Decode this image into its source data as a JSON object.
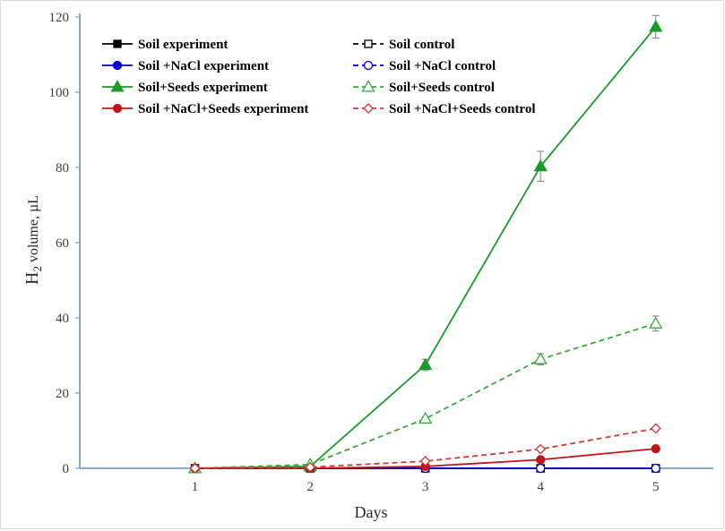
{
  "chart_data": {
    "type": "line",
    "xlabel": "Days",
    "ylabel": {
      "main": "H",
      "subscript": "2",
      "rest": " volume, µL"
    },
    "x": [
      1,
      2,
      3,
      4,
      5
    ],
    "xlim": [
      0,
      5.5
    ],
    "ylim": [
      0,
      120
    ],
    "yticks": [
      0,
      20,
      40,
      60,
      80,
      100,
      120
    ],
    "xticks": [
      1,
      2,
      3,
      4,
      5
    ],
    "grid": false,
    "legend_position": "top-left",
    "series": [
      {
        "name": "Soil experiment",
        "values": [
          0,
          0,
          0,
          0,
          0
        ],
        "color": "#000000",
        "marker": "square",
        "filled": true,
        "dashed": false
      },
      {
        "name": "Soil control",
        "values": [
          0,
          0,
          0,
          0,
          0
        ],
        "color": "#000000",
        "marker": "square",
        "filled": false,
        "dashed": true
      },
      {
        "name": "Soil +NaCl experiment",
        "values": [
          0,
          0,
          0,
          0,
          0
        ],
        "color": "#0000cc",
        "marker": "circle",
        "filled": true,
        "dashed": false
      },
      {
        "name": "Soil +NaCl control",
        "values": [
          0,
          0,
          0,
          0,
          0
        ],
        "color": "#0000cc",
        "marker": "circle",
        "filled": false,
        "dashed": true
      },
      {
        "name": "Soil+Seeds experiment",
        "values": [
          0,
          0.5,
          27.5,
          80.3,
          117.4
        ],
        "errors": [
          0,
          0,
          1.5,
          4.0,
          3.0
        ],
        "color": "#1a9b2a",
        "marker": "triangle",
        "filled": true,
        "dashed": false
      },
      {
        "name": "Soil+Seeds control",
        "values": [
          0,
          1.0,
          13.2,
          29.0,
          38.5
        ],
        "errors": [
          0,
          0,
          0.5,
          1.5,
          2.0
        ],
        "color": "#3aa83a",
        "marker": "triangle",
        "filled": false,
        "dashed": true
      },
      {
        "name": "Soil +NaCl+Seeds experiment",
        "values": [
          0,
          0,
          0.5,
          2.3,
          5.2
        ],
        "color": "#c0161b",
        "marker": "circle",
        "filled": true,
        "dashed": false
      },
      {
        "name": "Soil +NaCl+Seeds control",
        "values": [
          0,
          0.3,
          1.9,
          5.1,
          10.6
        ],
        "color": "#d23a3a",
        "marker": "diamond",
        "filled": false,
        "dashed": true
      }
    ],
    "legend_order": [
      [
        "Soil experiment",
        "Soil control"
      ],
      [
        "Soil +NaCl experiment",
        "Soil +NaCl control"
      ],
      [
        "Soil+Seeds experiment",
        "Soil+Seeds control"
      ],
      [
        "Soil +NaCl+Seeds experiment",
        "Soil +NaCl+Seeds control"
      ]
    ]
  }
}
